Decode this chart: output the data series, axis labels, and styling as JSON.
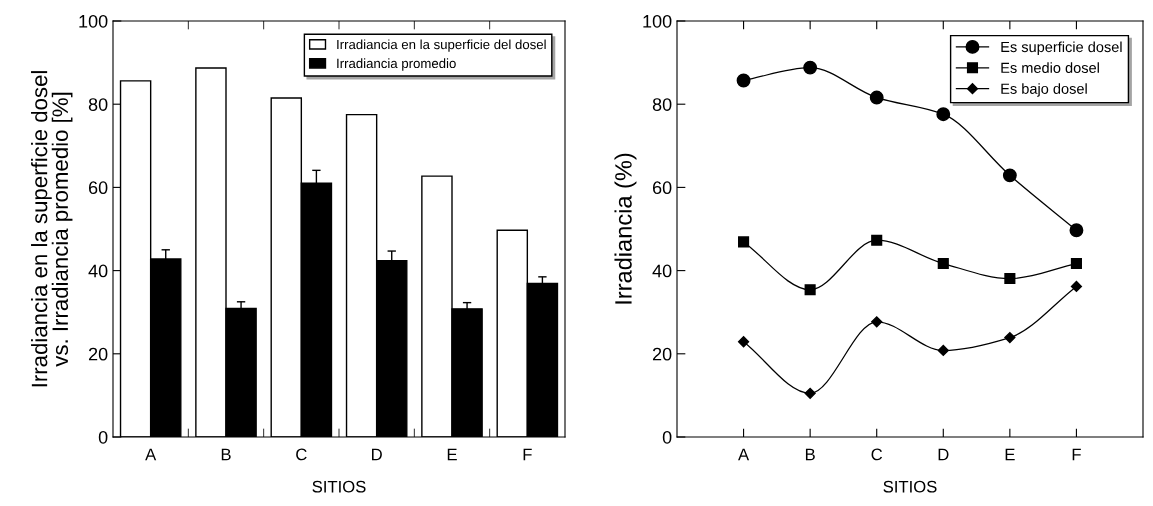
{
  "chart_data": [
    {
      "type": "bar",
      "categories": [
        "A",
        "B",
        "C",
        "D",
        "E",
        "F"
      ],
      "xlabel": "SITIOS",
      "ylabel": "Irradiancia en la superficie dosel\nvs. Irradiancia promedio [%]",
      "ylim": [
        0,
        100
      ],
      "yticks": [
        0,
        20,
        40,
        60,
        80,
        100
      ],
      "legend": "top right",
      "grid": false,
      "series": [
        {
          "name": "Irradiancia en la superficie del dosel",
          "color": "#ffffff",
          "values": [
            85.6,
            88.7,
            81.5,
            77.5,
            62.7,
            49.7
          ]
        },
        {
          "name": "Irradiancia promedio",
          "color": "#000000",
          "values": [
            42.8,
            30.9,
            61.0,
            42.4,
            30.8,
            36.9
          ],
          "errors": [
            2.2,
            1.6,
            3.1,
            2.3,
            1.5,
            1.6
          ]
        }
      ]
    },
    {
      "type": "line",
      "categories": [
        "A",
        "B",
        "C",
        "D",
        "E",
        "F"
      ],
      "xlabel": "SITIOS",
      "ylabel": "Irradiancia (%)",
      "ylim": [
        0,
        100
      ],
      "yticks": [
        0,
        20,
        40,
        60,
        80,
        100
      ],
      "legend": "top right",
      "grid": false,
      "line_style": "solid",
      "series": [
        {
          "name": "Es superficie dosel",
          "color": "#000000",
          "marker": "circle",
          "values": [
            85.7,
            88.8,
            81.6,
            77.6,
            62.9,
            49.7
          ]
        },
        {
          "name": "Es medio dosel",
          "color": "#000000",
          "marker": "square",
          "values": [
            46.9,
            35.4,
            47.3,
            41.7,
            38.1,
            41.7
          ]
        },
        {
          "name": "Es bajo dosel",
          "color": "#000000",
          "marker": "diamond",
          "values": [
            22.9,
            10.5,
            27.7,
            20.8,
            23.9,
            36.2
          ]
        }
      ]
    }
  ]
}
